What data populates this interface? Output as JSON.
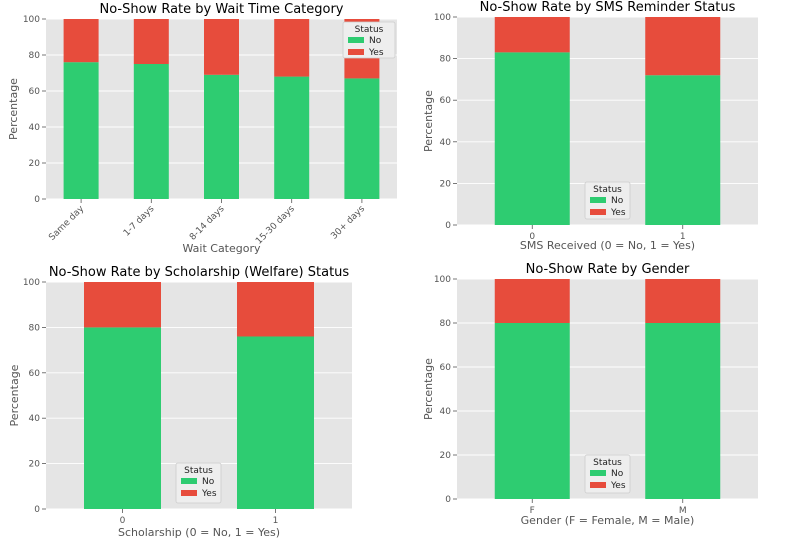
{
  "colors": {
    "No": "#2ecc71",
    "Yes": "#e74c3c"
  },
  "chart_data": [
    {
      "type": "bar",
      "stacked": true,
      "title": "No-Show Rate by Wait Time Category",
      "xlabel": "Wait Category",
      "ylabel": "Percentage",
      "categories": [
        "Same day",
        "1-7 days",
        "8-14 days",
        "15-30 days",
        "30+ days"
      ],
      "series": [
        {
          "name": "No",
          "values": [
            76,
            75,
            69,
            68,
            67
          ]
        },
        {
          "name": "Yes",
          "values": [
            24,
            25,
            31,
            32,
            33
          ]
        }
      ],
      "ylim": [
        0,
        100
      ],
      "yticks": [
        0,
        20,
        40,
        60,
        80,
        100
      ],
      "legend": {
        "title": "Status",
        "placement": "top-right"
      },
      "grid": true,
      "rotate_xticks": true
    },
    {
      "type": "bar",
      "stacked": true,
      "title": "No-Show Rate by SMS Reminder Status",
      "xlabel": "SMS Received (0 = No, 1 = Yes)",
      "ylabel": "Percentage",
      "categories": [
        "0",
        "1"
      ],
      "series": [
        {
          "name": "No",
          "values": [
            83,
            72
          ]
        },
        {
          "name": "Yes",
          "values": [
            17,
            28
          ]
        }
      ],
      "ylim": [
        0,
        100
      ],
      "yticks": [
        0,
        20,
        40,
        60,
        80,
        100
      ],
      "legend": {
        "title": "Status",
        "placement": "bottom-center"
      },
      "grid": true,
      "rotate_xticks": false
    },
    {
      "type": "bar",
      "stacked": true,
      "title": "No-Show Rate by Scholarship (Welfare) Status",
      "xlabel": "Scholarship (0 = No, 1 = Yes)",
      "ylabel": "Percentage",
      "categories": [
        "0",
        "1"
      ],
      "series": [
        {
          "name": "No",
          "values": [
            80,
            76
          ]
        },
        {
          "name": "Yes",
          "values": [
            20,
            24
          ]
        }
      ],
      "ylim": [
        0,
        100
      ],
      "yticks": [
        0,
        20,
        40,
        60,
        80,
        100
      ],
      "legend": {
        "title": "Status",
        "placement": "bottom-center"
      },
      "grid": true,
      "rotate_xticks": false
    },
    {
      "type": "bar",
      "stacked": true,
      "title": "No-Show Rate by Gender",
      "xlabel": "Gender (F = Female, M = Male)",
      "ylabel": "Percentage",
      "categories": [
        "F",
        "M"
      ],
      "series": [
        {
          "name": "No",
          "values": [
            80,
            80
          ]
        },
        {
          "name": "Yes",
          "values": [
            20,
            20
          ]
        }
      ],
      "ylim": [
        0,
        100
      ],
      "yticks": [
        0,
        20,
        40,
        60,
        80,
        100
      ],
      "legend": {
        "title": "Status",
        "placement": "bottom-center"
      },
      "grid": true,
      "rotate_xticks": false
    }
  ]
}
